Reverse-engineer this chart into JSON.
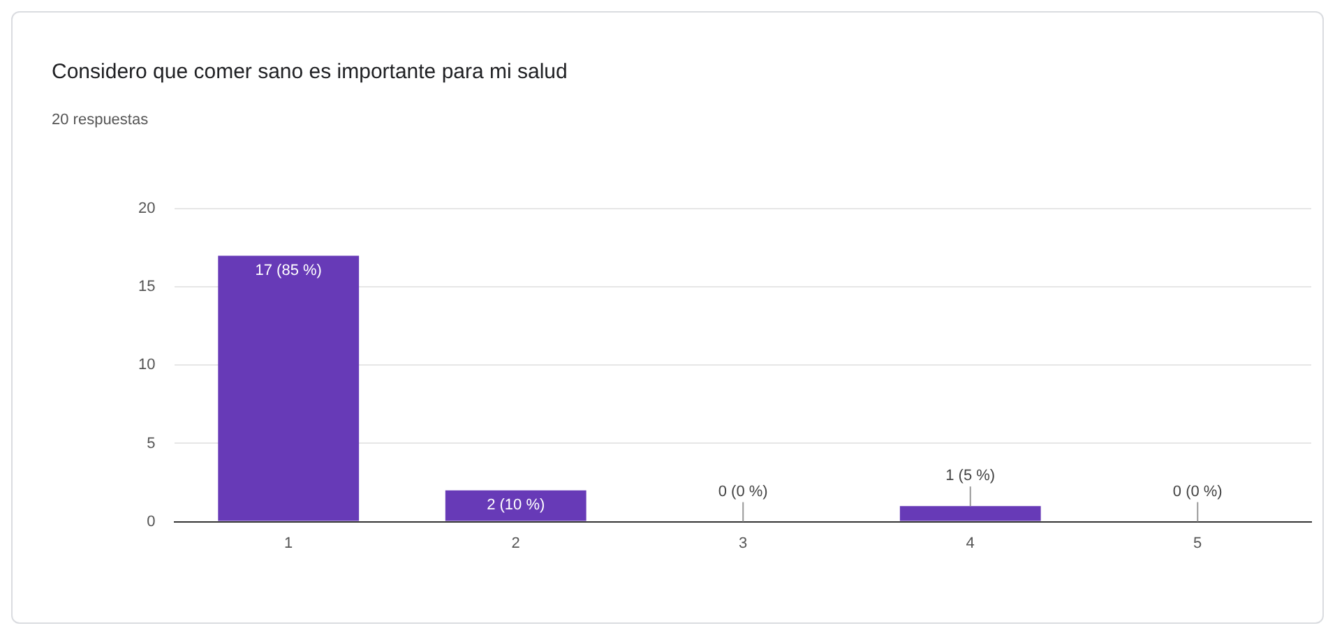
{
  "chart_data": {
    "type": "bar",
    "title": "Considero que comer sano es importante para mi salud",
    "subtitle": "20 respuestas",
    "categories": [
      "1",
      "2",
      "3",
      "4",
      "5"
    ],
    "values": [
      17,
      2,
      0,
      1,
      0
    ],
    "value_labels": [
      "17 (85 %)",
      "2 (10 %)",
      "0 (0 %)",
      "1 (5 %)",
      "0 (0 %)"
    ],
    "color": "#673ab7",
    "ylim": [
      0,
      20
    ],
    "yticks": [
      0,
      5,
      10,
      15,
      20
    ],
    "grid": "y",
    "legend": false
  }
}
